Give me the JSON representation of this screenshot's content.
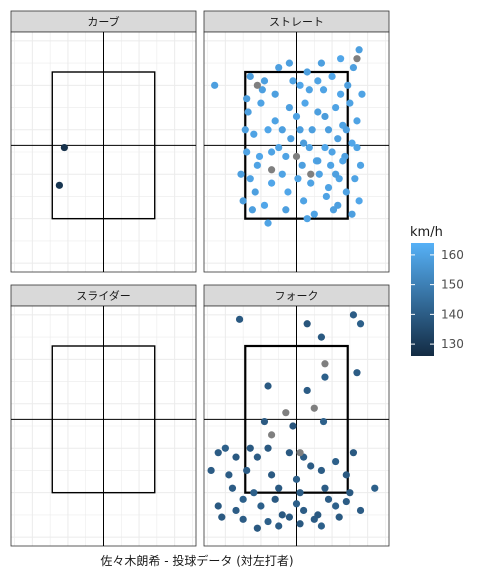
{
  "chart_data": {
    "type": "scatter",
    "caption": "佐々木朗希 - 投球データ (対左打者)",
    "legend": {
      "title": "km/h",
      "ticks": [
        130,
        140,
        150,
        160
      ],
      "range": [
        126,
        164
      ],
      "placement": "right",
      "color_low": "#132b43",
      "color_high": "#56b1f7",
      "na_color": "#7f7f7f"
    },
    "xlim": [
      -1.3,
      1.3
    ],
    "ylim": [
      -0.2,
      5.2
    ],
    "strike_zone": {
      "x": [
        -0.72,
        0.72
      ],
      "y": [
        1.0,
        4.3
      ]
    },
    "panels": [
      {
        "name": "カーブ",
        "points": [
          [
            -0.55,
            2.6,
            128
          ],
          [
            -0.62,
            1.75,
            129
          ]
        ]
      },
      {
        "name": "ストレート",
        "points": [
          [
            -1.15,
            4.0,
            159
          ],
          [
            -0.75,
            1.4,
            158
          ],
          [
            -0.78,
            2.0,
            159
          ],
          [
            -0.7,
            2.5,
            160
          ],
          [
            -0.72,
            3.0,
            159
          ],
          [
            -0.68,
            3.4,
            159
          ],
          [
            -0.65,
            4.2,
            158
          ],
          [
            -0.5,
            3.6,
            160
          ],
          [
            -0.45,
            4.1,
            159
          ],
          [
            -0.55,
            2.2,
            160
          ],
          [
            -0.58,
            1.6,
            159
          ],
          [
            -0.4,
            3.0,
            161
          ],
          [
            -0.35,
            2.5,
            160
          ],
          [
            -0.48,
            3.9,
            159
          ],
          [
            -0.6,
            2.9,
            160
          ],
          [
            -0.62,
            1.2,
            159
          ],
          [
            -0.7,
            3.7,
            158
          ],
          [
            -0.3,
            3.2,
            160
          ],
          [
            -0.25,
            4.4,
            159
          ],
          [
            -0.35,
            1.8,
            161
          ],
          [
            -0.4,
            0.9,
            160
          ],
          [
            -0.52,
            2.4,
            161
          ],
          [
            -0.2,
            3.0,
            159
          ],
          [
            -0.15,
            2.4,
            160
          ],
          [
            -0.1,
            3.5,
            159
          ],
          [
            -0.05,
            4.1,
            160
          ],
          [
            -0.12,
            1.6,
            161
          ],
          [
            -0.2,
            2.0,
            160
          ],
          [
            -0.08,
            2.8,
            159
          ],
          [
            0.0,
            3.3,
            160
          ],
          [
            0.05,
            4.0,
            161
          ],
          [
            0.08,
            2.2,
            159
          ],
          [
            0.1,
            1.4,
            160
          ],
          [
            0.02,
            1.9,
            160
          ],
          [
            0.12,
            3.6,
            161
          ],
          [
            0.15,
            4.3,
            159
          ],
          [
            0.18,
            2.6,
            160
          ],
          [
            0.22,
            3.0,
            159
          ],
          [
            0.25,
            1.1,
            160
          ],
          [
            0.28,
            2.3,
            161
          ],
          [
            0.2,
            1.8,
            160
          ],
          [
            0.3,
            3.4,
            159
          ],
          [
            0.32,
            2.0,
            160
          ],
          [
            0.35,
            4.5,
            159
          ],
          [
            0.38,
            3.9,
            160
          ],
          [
            0.4,
            2.6,
            161
          ],
          [
            0.42,
            1.5,
            160
          ],
          [
            0.45,
            3.0,
            159
          ],
          [
            0.48,
            2.2,
            160
          ],
          [
            0.5,
            4.2,
            161
          ],
          [
            0.52,
            1.2,
            159
          ],
          [
            0.55,
            3.5,
            160
          ],
          [
            0.58,
            2.8,
            159
          ],
          [
            0.6,
            1.9,
            160
          ],
          [
            0.62,
            4.6,
            161
          ],
          [
            0.65,
            3.1,
            160
          ],
          [
            0.68,
            2.4,
            159
          ],
          [
            0.7,
            1.6,
            160
          ],
          [
            0.72,
            4.0,
            159
          ],
          [
            0.75,
            3.6,
            160
          ],
          [
            0.78,
            2.7,
            161
          ],
          [
            0.8,
            4.4,
            159
          ],
          [
            0.82,
            1.9,
            160
          ],
          [
            0.85,
            3.2,
            160
          ],
          [
            0.88,
            4.8,
            159
          ],
          [
            0.9,
            2.2,
            160
          ],
          [
            0.88,
            1.4,
            161
          ],
          [
            0.92,
            3.8,
            160
          ],
          [
            0.78,
            1.1,
            159
          ],
          [
            0.85,
            4.6,
            null
          ],
          [
            0.2,
            2.0,
            null
          ],
          [
            0.0,
            2.4,
            null
          ],
          [
            -0.35,
            2.1,
            null
          ],
          [
            -0.55,
            4.0,
            null
          ],
          [
            0.1,
            2.7,
            158
          ],
          [
            0.3,
            2.3,
            159
          ],
          [
            0.45,
            1.7,
            160
          ],
          [
            0.55,
            2.0,
            159
          ],
          [
            0.65,
            2.3,
            161
          ],
          [
            -0.25,
            2.6,
            160
          ],
          [
            0.05,
            3.0,
            159
          ],
          [
            0.4,
            3.3,
            158
          ],
          [
            0.7,
            3.0,
            159
          ],
          [
            -0.65,
            1.9,
            160
          ],
          [
            -0.45,
            1.3,
            161
          ],
          [
            0.15,
            1.0,
            160
          ],
          [
            0.58,
            1.3,
            159
          ],
          [
            0.85,
            2.6,
            160
          ],
          [
            -0.1,
            4.5,
            159
          ],
          [
            0.3,
            4.1,
            160
          ],
          [
            0.62,
            3.8,
            161
          ],
          [
            -0.3,
            3.8,
            159
          ],
          [
            0.5,
            2.5,
            160
          ],
          [
            0.18,
            3.9,
            160
          ],
          [
            -0.15,
            1.2,
            159
          ]
        ]
      },
      {
        "name": "スライダー",
        "points": []
      },
      {
        "name": "フォーク",
        "points": [
          [
            -0.8,
            4.9,
            139
          ],
          [
            0.15,
            4.8,
            138
          ],
          [
            0.8,
            5.0,
            140
          ],
          [
            0.9,
            4.8,
            141
          ],
          [
            0.35,
            4.5,
            139
          ],
          [
            0.85,
            3.7,
            140
          ],
          [
            0.4,
            3.6,
            141
          ],
          [
            -0.4,
            3.4,
            139
          ],
          [
            0.15,
            3.3,
            140
          ],
          [
            -0.45,
            2.6,
            139
          ],
          [
            -0.05,
            2.5,
            138
          ],
          [
            0.38,
            2.6,
            141
          ],
          [
            -0.55,
            1.8,
            140
          ],
          [
            -0.1,
            1.9,
            139
          ],
          [
            0.1,
            1.8,
            140
          ],
          [
            0.55,
            1.7,
            141
          ],
          [
            0.8,
            1.9,
            139
          ],
          [
            -0.7,
            1.5,
            140
          ],
          [
            -0.35,
            1.4,
            139
          ],
          [
            0.0,
            1.3,
            141
          ],
          [
            0.35,
            1.5,
            140
          ],
          [
            0.7,
            1.4,
            139
          ],
          [
            -0.9,
            1.1,
            140
          ],
          [
            -0.6,
            1.0,
            141
          ],
          [
            -0.25,
            1.1,
            139
          ],
          [
            0.05,
            1.0,
            140
          ],
          [
            0.4,
            1.1,
            140
          ],
          [
            0.75,
            1.0,
            139
          ],
          [
            1.1,
            1.1,
            141
          ],
          [
            -1.1,
            0.7,
            139
          ],
          [
            -0.85,
            0.6,
            140
          ],
          [
            -0.5,
            0.7,
            141
          ],
          [
            -0.2,
            0.5,
            139
          ],
          [
            0.1,
            0.6,
            140
          ],
          [
            0.3,
            0.5,
            139
          ],
          [
            0.55,
            0.7,
            141
          ],
          [
            0.9,
            0.6,
            140
          ],
          [
            -1.05,
            0.45,
            139
          ],
          [
            -0.75,
            0.4,
            140
          ],
          [
            -0.4,
            0.35,
            141
          ],
          [
            -0.1,
            0.45,
            139
          ],
          [
            0.25,
            0.4,
            140
          ],
          [
            0.6,
            0.45,
            139
          ],
          [
            -1.2,
            1.5,
            140
          ],
          [
            -1.0,
            2.0,
            141
          ],
          [
            -0.85,
            1.8,
            139
          ],
          [
            -0.95,
            1.4,
            140
          ],
          [
            -0.65,
            2.0,
            139
          ],
          [
            -1.1,
            1.9,
            140
          ],
          [
            0.0,
            0.75,
            141
          ],
          [
            0.45,
            0.85,
            140
          ],
          [
            -0.3,
            0.85,
            139
          ],
          [
            0.7,
            0.8,
            140
          ],
          [
            -0.75,
            0.85,
            141
          ],
          [
            -0.55,
            0.2,
            139
          ],
          [
            -0.25,
            0.25,
            140
          ],
          [
            0.05,
            0.3,
            139
          ],
          [
            0.35,
            0.25,
            141
          ],
          [
            0.2,
            1.6,
            140
          ],
          [
            -0.4,
            2.0,
            139
          ],
          [
            -0.15,
            2.8,
            null
          ],
          [
            0.25,
            2.9,
            null
          ],
          [
            0.4,
            3.9,
            null
          ],
          [
            0.05,
            1.9,
            null
          ],
          [
            -0.35,
            2.3,
            null
          ]
        ]
      }
    ]
  }
}
